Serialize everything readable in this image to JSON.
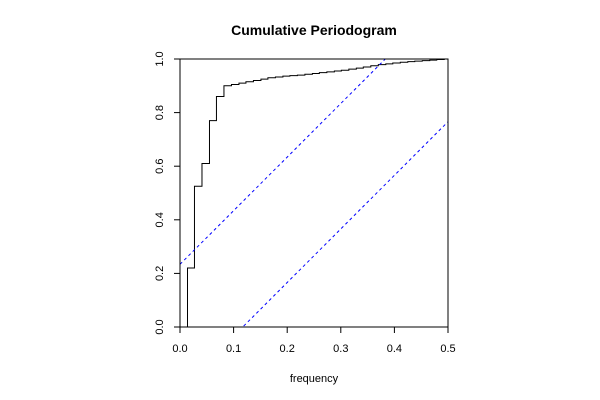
{
  "chart_data": {
    "type": "line",
    "title": "Cumulative Periodogram",
    "xlabel": "frequency",
    "ylabel": "",
    "xlim": [
      0,
      0.5
    ],
    "ylim": [
      0,
      1
    ],
    "x_ticks": [
      "0.0",
      "0.1",
      "0.2",
      "0.3",
      "0.4",
      "0.5"
    ],
    "y_ticks": [
      "0.0",
      "0.2",
      "0.4",
      "0.6",
      "0.8",
      "1.0"
    ],
    "grid": false,
    "series": [
      {
        "kind": "step",
        "color": "#000000",
        "x": [
          0.0,
          0.014,
          0.027,
          0.041,
          0.055,
          0.068,
          0.082,
          0.096,
          0.11,
          0.123,
          0.137,
          0.151,
          0.164,
          0.178,
          0.192,
          0.205,
          0.219,
          0.233,
          0.247,
          0.26,
          0.274,
          0.288,
          0.301,
          0.315,
          0.329,
          0.342,
          0.356,
          0.37,
          0.384,
          0.397,
          0.411,
          0.425,
          0.438,
          0.452,
          0.466,
          0.479,
          0.493
        ],
        "y": [
          0.0,
          0.22,
          0.525,
          0.61,
          0.77,
          0.86,
          0.9,
          0.905,
          0.91,
          0.915,
          0.92,
          0.925,
          0.93,
          0.933,
          0.936,
          0.938,
          0.94,
          0.943,
          0.946,
          0.949,
          0.952,
          0.955,
          0.958,
          0.962,
          0.966,
          0.97,
          0.975,
          0.979,
          0.982,
          0.985,
          0.988,
          0.99,
          0.992,
          0.994,
          0.996,
          0.998,
          1.0
        ]
      },
      {
        "kind": "dashed",
        "color": "#0000ff",
        "x": [
          0,
          0.5
        ],
        "y": [
          0.234,
          1.234
        ]
      },
      {
        "kind": "dashed",
        "color": "#0000ff",
        "x": [
          0,
          0.5
        ],
        "y": [
          -0.234,
          0.766
        ]
      }
    ]
  }
}
